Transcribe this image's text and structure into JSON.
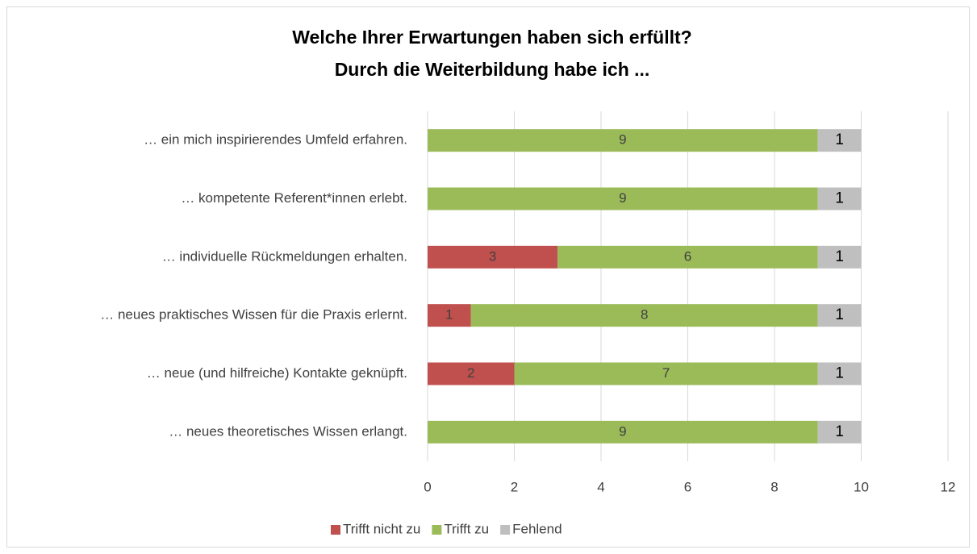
{
  "chart_data": {
    "type": "stacked_bar_horizontal",
    "title": [
      "Welche Ihrer Erwartungen haben sich erfüllt?",
      "Durch die Weiterbildung habe ich ..."
    ],
    "categories": [
      "… ein mich inspirierendes Umfeld erfahren.",
      "… kompetente Referent*innen erlebt.",
      "… individuelle Rückmeldungen erhalten.",
      "… neues praktisches Wissen für die Praxis erlernt.",
      "… neue (und hilfreiche) Kontakte geknüpft.",
      "… neues theoretisches Wissen erlangt."
    ],
    "series": [
      {
        "name": "Trifft nicht zu",
        "color": "#c0504d",
        "values": [
          0,
          0,
          3,
          1,
          2,
          0
        ]
      },
      {
        "name": "Trifft zu",
        "color": "#9bbb59",
        "values": [
          9,
          9,
          6,
          8,
          7,
          9
        ]
      },
      {
        "name": "Fehlend",
        "color": "#bfbfbf",
        "values": [
          1,
          1,
          1,
          1,
          1,
          1
        ]
      }
    ],
    "xlim": [
      0,
      12
    ],
    "xticks": [
      0,
      2,
      4,
      6,
      8,
      10,
      12
    ],
    "grid": true,
    "legend": "bottom"
  }
}
